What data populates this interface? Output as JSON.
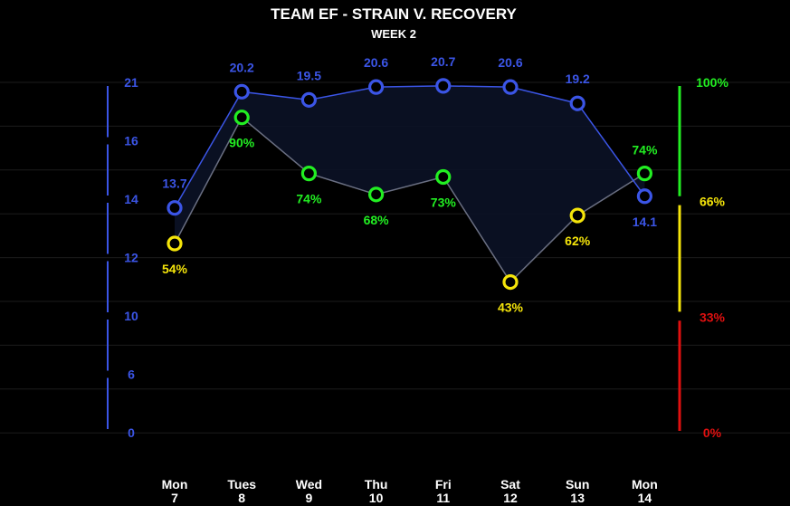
{
  "title": "TEAM EF - STRAIN V. RECOVERY",
  "subtitle": "WEEK 2",
  "chart_data": {
    "type": "line",
    "categories": [
      {
        "day": "Mon",
        "date": "7"
      },
      {
        "day": "Tues",
        "date": "8"
      },
      {
        "day": "Wed",
        "date": "9"
      },
      {
        "day": "Thu",
        "date": "10"
      },
      {
        "day": "Fri",
        "date": "11"
      },
      {
        "day": "Sat",
        "date": "12"
      },
      {
        "day": "Sun",
        "date": "13"
      },
      {
        "day": "Mon",
        "date": "14"
      }
    ],
    "series": [
      {
        "metric": "strain",
        "values": [
          13.7,
          20.2,
          19.5,
          20.6,
          20.7,
          20.6,
          19.2,
          14.1
        ],
        "labels": [
          "13.7",
          "20.2",
          "19.5",
          "20.6",
          "20.7",
          "20.6",
          "19.2",
          "14.1"
        ],
        "color": "#3b55e6"
      },
      {
        "metric": "recovery",
        "values": [
          54,
          90,
          74,
          68,
          73,
          43,
          62,
          74
        ],
        "labels": [
          "54%",
          "90%",
          "74%",
          "68%",
          "73%",
          "43%",
          "62%",
          "74%"
        ],
        "zone_colors": {
          "green": "#22ee22",
          "yellow": "#f5e50a",
          "red": "#e01010"
        }
      }
    ],
    "left_axis": {
      "ticks": [
        "21",
        "16",
        "14",
        "12",
        "10",
        "6",
        "0"
      ],
      "color": "#3b55e6"
    },
    "right_axis": {
      "ticks": [
        {
          "label": "100%",
          "value": 100,
          "color": "#22ee22"
        },
        {
          "label": "66%",
          "value": 66,
          "color": "#f5e50a"
        },
        {
          "label": "33%",
          "value": 33,
          "color": "#e01010"
        },
        {
          "label": "0%",
          "value": 0,
          "color": "#e01010"
        }
      ],
      "zones": [
        {
          "from": 0,
          "to": 33,
          "color": "#e01010"
        },
        {
          "from": 34,
          "to": 66,
          "color": "#f5e50a"
        },
        {
          "from": 67,
          "to": 100,
          "color": "#22ee22"
        }
      ]
    },
    "grid": true,
    "recovery_range": [
      0,
      100
    ],
    "strain_range": [
      0,
      21
    ]
  }
}
